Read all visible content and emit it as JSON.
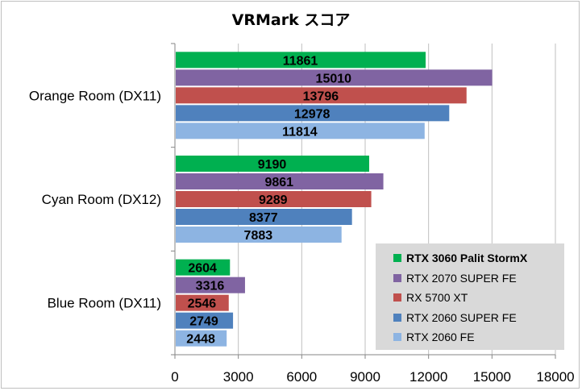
{
  "chart_data": {
    "type": "bar",
    "orientation": "horizontal",
    "title": "VRMark スコア",
    "categories": [
      "Orange Room (DX11)",
      "Cyan Room (DX12)",
      "Blue Room (DX11)"
    ],
    "series": [
      {
        "name": "RTX 3060 Palit StormX",
        "color": "#00b050",
        "values": [
          11861,
          9190,
          2604
        ],
        "legend_bold": true
      },
      {
        "name": "RTX 2070 SUPER FE",
        "color": "#8064a2",
        "values": [
          15010,
          9861,
          3316
        ]
      },
      {
        "name": "RX 5700 XT",
        "color": "#c0504d",
        "values": [
          13796,
          9289,
          2546
        ]
      },
      {
        "name": "RTX 2060 SUPER FE",
        "color": "#4f81bd",
        "values": [
          12978,
          8377,
          2749
        ]
      },
      {
        "name": "RTX 2060 FE",
        "color": "#8db4e2",
        "values": [
          11814,
          7883,
          2448
        ]
      }
    ],
    "xlim": [
      0,
      18000
    ],
    "x_ticks": [
      "0",
      "3000",
      "6000",
      "9000",
      "12000",
      "15000",
      "18000"
    ],
    "grid": true,
    "legend_position": "bottom-right"
  }
}
